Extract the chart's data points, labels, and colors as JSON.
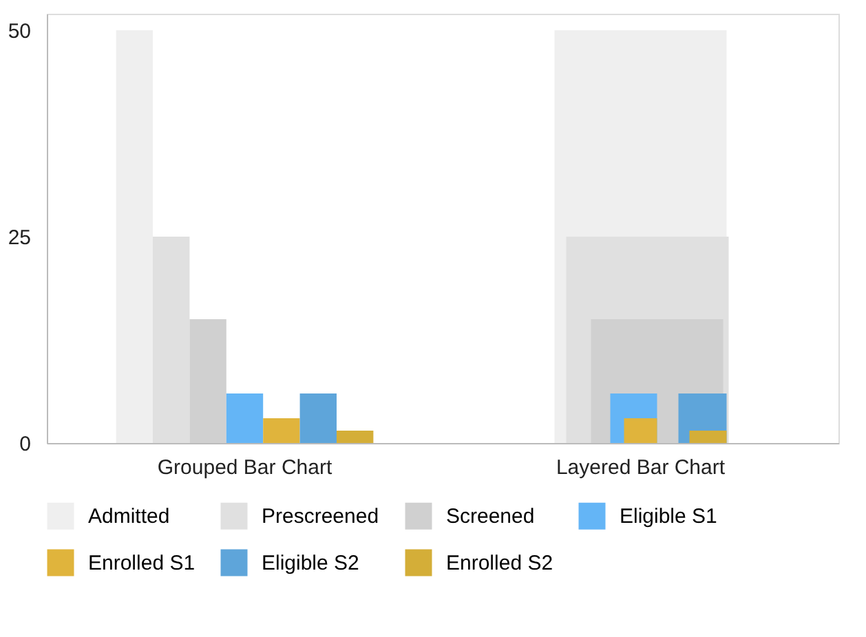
{
  "chart_data": {
    "type": "bar",
    "categories": [
      "Grouped Bar Chart",
      "Layered Bar Chart"
    ],
    "series": [
      {
        "name": "Admitted",
        "color": "#efefef",
        "values": [
          50,
          50
        ]
      },
      {
        "name": "Prescreened",
        "color": "#e0e0e0",
        "values": [
          25,
          25
        ]
      },
      {
        "name": "Screened",
        "color": "#d0d0d0",
        "values": [
          15,
          15
        ]
      },
      {
        "name": "Eligible S1",
        "color": "#64b5f6",
        "values": [
          6,
          6
        ]
      },
      {
        "name": "Enrolled S1",
        "color": "#e0b43c",
        "values": [
          3,
          3
        ]
      },
      {
        "name": "Eligible S2",
        "color": "#5ea5da",
        "values": [
          6,
          6
        ]
      },
      {
        "name": "Enrolled S2",
        "color": "#d4ae38",
        "values": [
          1.5,
          1.5
        ]
      }
    ],
    "ylim": [
      0,
      52
    ],
    "yticks": [
      0,
      25,
      50
    ],
    "grid": false,
    "legend": "bottom"
  }
}
